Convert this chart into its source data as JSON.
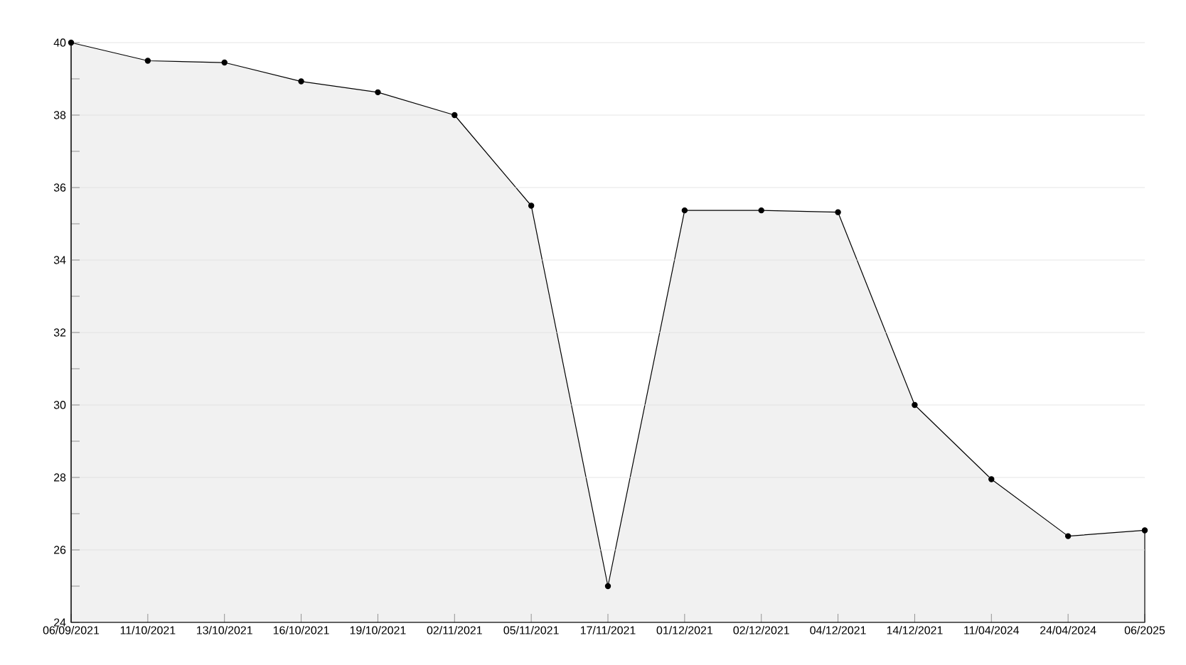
{
  "chart_data": {
    "type": "area",
    "categories": [
      "06/09/2021",
      "11/10/2021",
      "13/10/2021",
      "16/10/2021",
      "19/10/2021",
      "02/11/2021",
      "05/11/2021",
      "17/11/2021",
      "01/12/2021",
      "02/12/2021",
      "04/12/2021",
      "14/12/2021",
      "11/04/2024",
      "24/04/2024",
      "06/2025"
    ],
    "values": [
      40,
      39.5,
      39.45,
      38.93,
      38.63,
      38.0,
      35.5,
      25.0,
      35.37,
      35.37,
      35.32,
      30.0,
      27.95,
      26.38,
      26.54
    ],
    "color": "#000000",
    "ylim": [
      24,
      40
    ],
    "yticks": [
      24,
      {
        "value": 25,
        "label": null
      },
      26,
      {
        "value": 27,
        "label": null
      },
      28,
      {
        "value": 29,
        "label": null
      },
      30,
      {
        "value": 31,
        "label": null
      },
      32,
      {
        "value": 33,
        "label": null
      },
      34,
      {
        "value": 35,
        "label": null
      },
      36,
      {
        "value": 37,
        "label": null
      },
      38,
      {
        "value": 39,
        "label": null
      },
      40
    ],
    "grid": "y",
    "marker": "circle"
  }
}
